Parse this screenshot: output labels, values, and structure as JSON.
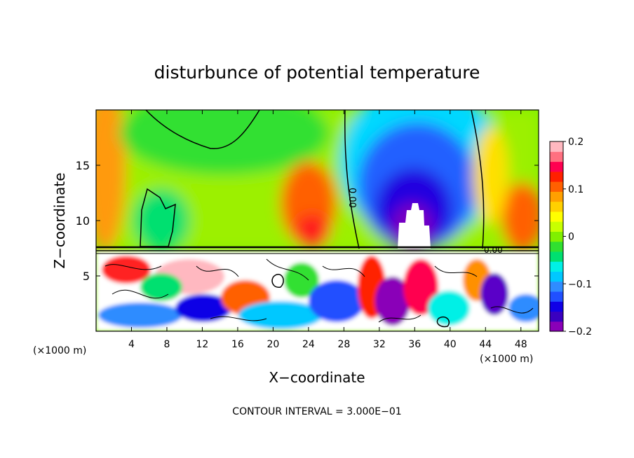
{
  "chart_data": {
    "type": "heatmap",
    "title": "disturbunce of potential temperature",
    "xlabel": "X−coordinate",
    "ylabel": "Z−coordinate",
    "x_unit_left": "(×1000 m)",
    "x_unit_right": "(×1000 m)",
    "xlim": [
      0,
      50
    ],
    "ylim": [
      0,
      20
    ],
    "x_ticks": [
      4,
      8,
      12,
      16,
      20,
      24,
      28,
      32,
      36,
      40,
      44,
      48
    ],
    "x_tick_labels": [
      "4",
      "8",
      "12",
      "16",
      "20",
      "24",
      "28",
      "32",
      "36",
      "40",
      "44",
      "48"
    ],
    "y_ticks": [
      5,
      10,
      15
    ],
    "y_tick_labels": [
      "5",
      "10",
      "15"
    ],
    "colorbar": {
      "range": [
        -0.2,
        0.2
      ],
      "ticks": [
        0.2,
        0.1,
        0,
        -0.1,
        -0.2
      ],
      "tick_labels": [
        "0.2",
        "0.1",
        "0",
        "−0.1",
        "−0.2"
      ],
      "colors": [
        "#8a00b8",
        "#3a00c0",
        "#1000e6",
        "#2050ff",
        "#2f8cff",
        "#00c8ff",
        "#00f0e6",
        "#00e070",
        "#30e030",
        "#80f000",
        "#c8ff00",
        "#ffff00",
        "#ffd000",
        "#ffa000",
        "#ff6000",
        "#ff2000",
        "#ff0050",
        "#ff7080",
        "#ffb8c0"
      ]
    },
    "contour_labels": [
      "0.00",
      "0.00"
    ],
    "footer": "CONTOUR INTERVAL = 3.000E−01"
  }
}
